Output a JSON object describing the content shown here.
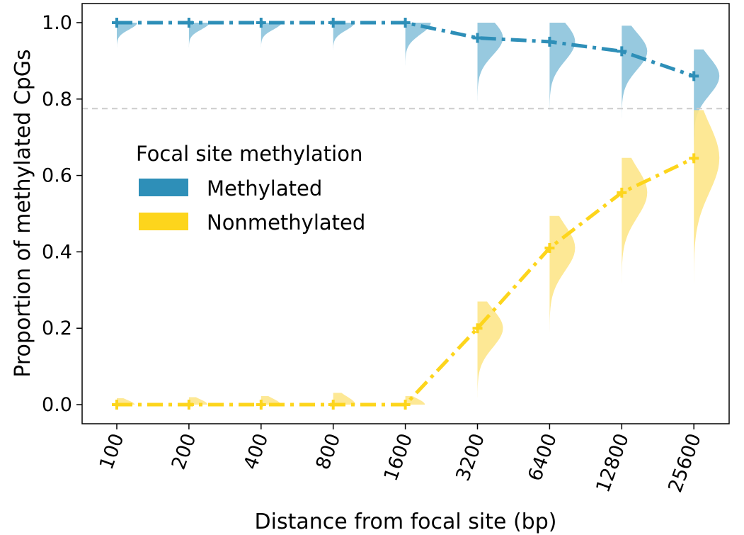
{
  "chart_data": {
    "type": "line",
    "title": "",
    "xlabel": "Distance from focal site (bp)",
    "ylabel": "Proportion of methylated CpGs",
    "categories": [
      "100",
      "200",
      "400",
      "800",
      "1600",
      "3200",
      "6400",
      "12800",
      "25600"
    ],
    "ylim": [
      -0.05,
      1.05
    ],
    "yticks": [
      "0.0",
      "0.2",
      "0.4",
      "0.6",
      "0.8",
      "1.0"
    ],
    "x_tick_rotation": "diagonal",
    "reference_line": {
      "y": 0.775,
      "style": "dashed",
      "color": "#cccccc"
    },
    "grid": false,
    "legend": {
      "title": "Focal site methylation",
      "placement": "center-left"
    },
    "series": [
      {
        "name": "Methylated",
        "color": "#2e8fb8",
        "fill_color": "#8cc3dc",
        "values": [
          1.0,
          1.0,
          1.0,
          1.0,
          1.0,
          0.96,
          0.95,
          0.925,
          0.86
        ],
        "distribution_spread": [
          0.018,
          0.018,
          0.018,
          0.02,
          0.03,
          0.045,
          0.05,
          0.048,
          0.05
        ]
      },
      {
        "name": "Nonmethylated",
        "color": "#fdd51c",
        "fill_color": "#fde68a",
        "values": [
          0.0,
          0.0,
          0.0,
          0.0,
          0.0,
          0.2,
          0.41,
          0.555,
          0.645
        ],
        "distribution_spread": [
          0.012,
          0.014,
          0.016,
          0.022,
          0.016,
          0.05,
          0.06,
          0.065,
          0.09
        ]
      }
    ]
  }
}
